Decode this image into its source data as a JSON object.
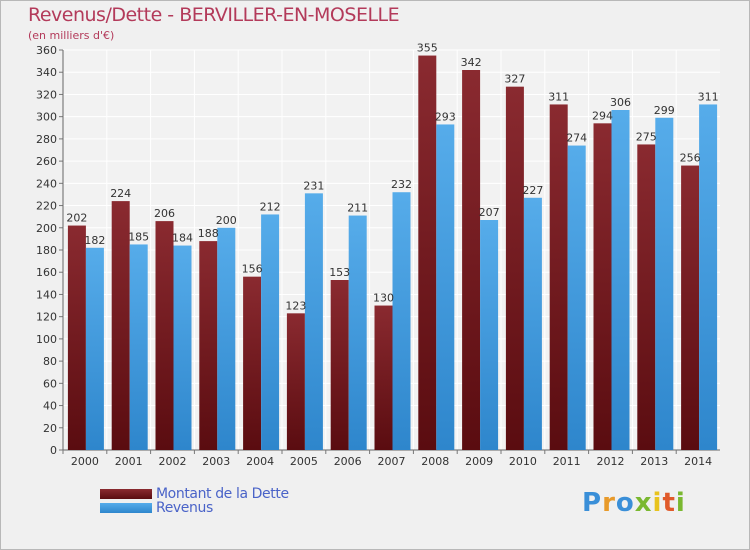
{
  "title": "Revenus/Dette - BERVILLER-EN-MOSELLE",
  "subtitle": "(en milliers d'€)",
  "logo": {
    "letters": [
      "P",
      "r",
      "o",
      "x",
      "i",
      "t",
      "i"
    ],
    "colors": [
      "#3a8fd8",
      "#e89a2a",
      "#3a8fd8",
      "#7ab830",
      "#e8c31e",
      "#e05a2a",
      "#7ab830"
    ]
  },
  "legend": {
    "debt_label": "Montant de la Dette",
    "revenue_label": "Revenus"
  },
  "colors": {
    "debt": "#7a1f24",
    "revenue": "#4aa0e0",
    "title": "#b33a5a",
    "legend_text": "#4a63c8"
  },
  "chart_data": {
    "type": "bar",
    "title": "Revenus/Dette - BERVILLER-EN-MOSELLE",
    "ylabel": "(en milliers d'€)",
    "xlabel": "",
    "categories": [
      "2000",
      "2001",
      "2002",
      "2003",
      "2004",
      "2005",
      "2006",
      "2007",
      "2008",
      "2009",
      "2010",
      "2011",
      "2012",
      "2013",
      "2014"
    ],
    "series": [
      {
        "name": "Montant de la Dette",
        "values": [
          202,
          224,
          206,
          188,
          156,
          123,
          153,
          130,
          355,
          342,
          327,
          311,
          294,
          275,
          256
        ]
      },
      {
        "name": "Revenus",
        "values": [
          182,
          185,
          184,
          200,
          212,
          231,
          211,
          232,
          293,
          207,
          227,
          274,
          306,
          299,
          311
        ]
      }
    ],
    "ylim": [
      0,
      360
    ],
    "yticks": [
      0,
      20,
      40,
      60,
      80,
      100,
      120,
      140,
      160,
      180,
      200,
      220,
      240,
      260,
      280,
      300,
      320,
      340,
      360
    ],
    "grid": true,
    "legend": "bottom-left"
  }
}
